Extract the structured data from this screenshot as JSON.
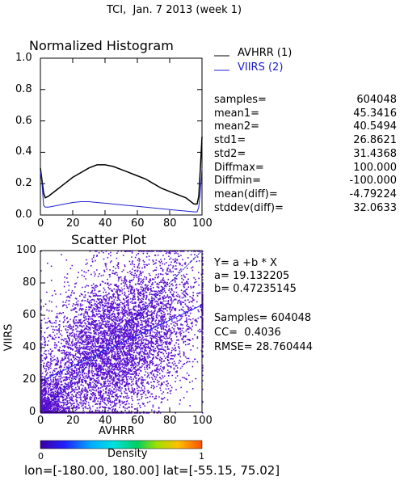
{
  "title": "TCI,  Jan. 7 2013 (week 1)",
  "histogram": {
    "title": "Normalized Histogram",
    "xlim": [
      0,
      100
    ],
    "ylim": [
      0,
      1
    ],
    "x_ticks": [
      "0",
      "20",
      "40",
      "60",
      "80",
      "100"
    ],
    "y_ticks": [
      "0.0",
      "0.2",
      "0.4",
      "0.6",
      "0.8",
      "1.0"
    ],
    "legend": [
      {
        "label": "AVHRR (1)",
        "color": "#000000"
      },
      {
        "label": "VIIRS (2)",
        "color": "#2020d0"
      }
    ]
  },
  "stats": [
    {
      "label": "samples=",
      "value": "604048"
    },
    {
      "label": "mean1=",
      "value": "45.3416"
    },
    {
      "label": "mean2=",
      "value": "40.5494"
    },
    {
      "label": "std1=",
      "value": "26.8621"
    },
    {
      "label": "std2=",
      "value": "31.4368"
    },
    {
      "label": "Diffmax=",
      "value": "100.000"
    },
    {
      "label": "Diffmin=",
      "value": "-100.000"
    },
    {
      "label": "mean(diff)=",
      "value": "-4.79224"
    },
    {
      "label": "stddev(diff)=",
      "value": "32.0633"
    }
  ],
  "scatter": {
    "title": "Scatter Plot",
    "xlabel": "AVHRR",
    "ylabel": "VIIRS",
    "xlim": [
      0,
      100
    ],
    "ylim": [
      0,
      100
    ],
    "x_ticks": [
      "0",
      "20",
      "40",
      "60",
      "80",
      "100"
    ],
    "y_ticks": [
      "0",
      "20",
      "40",
      "60",
      "80",
      "100"
    ],
    "point_color": "#5a0fd0",
    "fit_color": "#2020ff"
  },
  "regression": {
    "equation": "Y= a +b * X",
    "a": "a= 19.132205",
    "b": "b= 0.47235145",
    "samples": "Samples= 604048",
    "cc": "CC=  0.4036",
    "rmse": "RMSE= 28.760444"
  },
  "colorbar": {
    "label": "Density",
    "min": "0",
    "max": "1"
  },
  "footer": "lon=[-180.00, 180.00] lat=[-55.15, 75.02]",
  "chart_data": [
    {
      "type": "line",
      "title": "Normalized Histogram",
      "xlabel": "",
      "ylabel": "",
      "xlim": [
        0,
        100
      ],
      "ylim": [
        0,
        1
      ],
      "series": [
        {
          "name": "AVHRR (1)",
          "x": [
            0,
            1,
            2,
            3,
            5,
            10,
            15,
            20,
            25,
            30,
            35,
            40,
            45,
            50,
            55,
            60,
            65,
            70,
            75,
            80,
            85,
            90,
            95,
            97,
            98,
            99,
            100
          ],
          "y": [
            0.3,
            0.22,
            0.14,
            0.11,
            0.12,
            0.16,
            0.2,
            0.24,
            0.27,
            0.3,
            0.32,
            0.32,
            0.31,
            0.29,
            0.27,
            0.25,
            0.23,
            0.2,
            0.17,
            0.15,
            0.13,
            0.11,
            0.07,
            0.07,
            0.12,
            0.3,
            0.5
          ]
        },
        {
          "name": "VIIRS (2)",
          "x": [
            0,
            1,
            2,
            3,
            5,
            10,
            15,
            20,
            25,
            30,
            35,
            40,
            45,
            50,
            55,
            60,
            65,
            70,
            75,
            80,
            85,
            90,
            95,
            97,
            98,
            99,
            100
          ],
          "y": [
            0.28,
            0.2,
            0.06,
            0.05,
            0.05,
            0.06,
            0.07,
            0.08,
            0.085,
            0.085,
            0.08,
            0.075,
            0.07,
            0.065,
            0.06,
            0.055,
            0.05,
            0.045,
            0.04,
            0.035,
            0.03,
            0.025,
            0.02,
            0.02,
            0.05,
            0.15,
            0.3
          ]
        }
      ]
    },
    {
      "type": "scatter",
      "title": "Scatter Plot",
      "xlabel": "AVHRR",
      "ylabel": "VIIRS",
      "xlim": [
        0,
        100
      ],
      "ylim": [
        0,
        100
      ],
      "fit_line": {
        "a": 19.132205,
        "b": 0.47235145
      },
      "samples": 604048
    }
  ]
}
